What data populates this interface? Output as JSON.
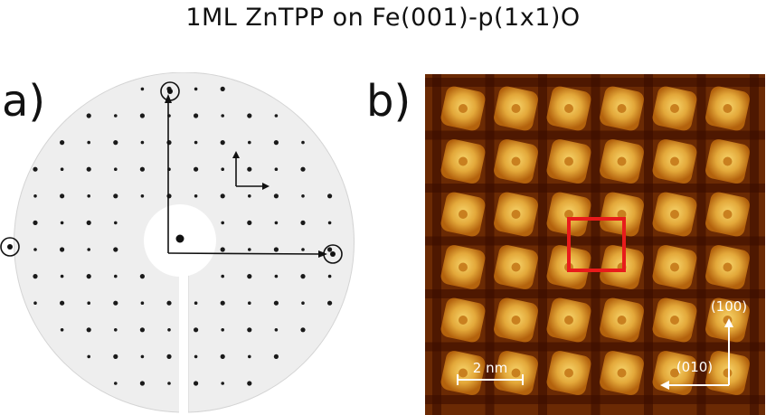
{
  "title": "1ML ZnTPP on Fe(001)-p(1x1)O",
  "panels": {
    "a": {
      "label": "a)"
    },
    "b": {
      "label": "b)",
      "scale_bar": "2 nm",
      "direction_100": "(100)",
      "direction_010": "(010)"
    }
  },
  "colors": {
    "highlight_box": "#e81b1b",
    "stm_bright": "#f2c24a",
    "stm_mid": "#b3620d",
    "stm_dark": "#3a0e00",
    "leed_screen": "#f2f2f2"
  }
}
